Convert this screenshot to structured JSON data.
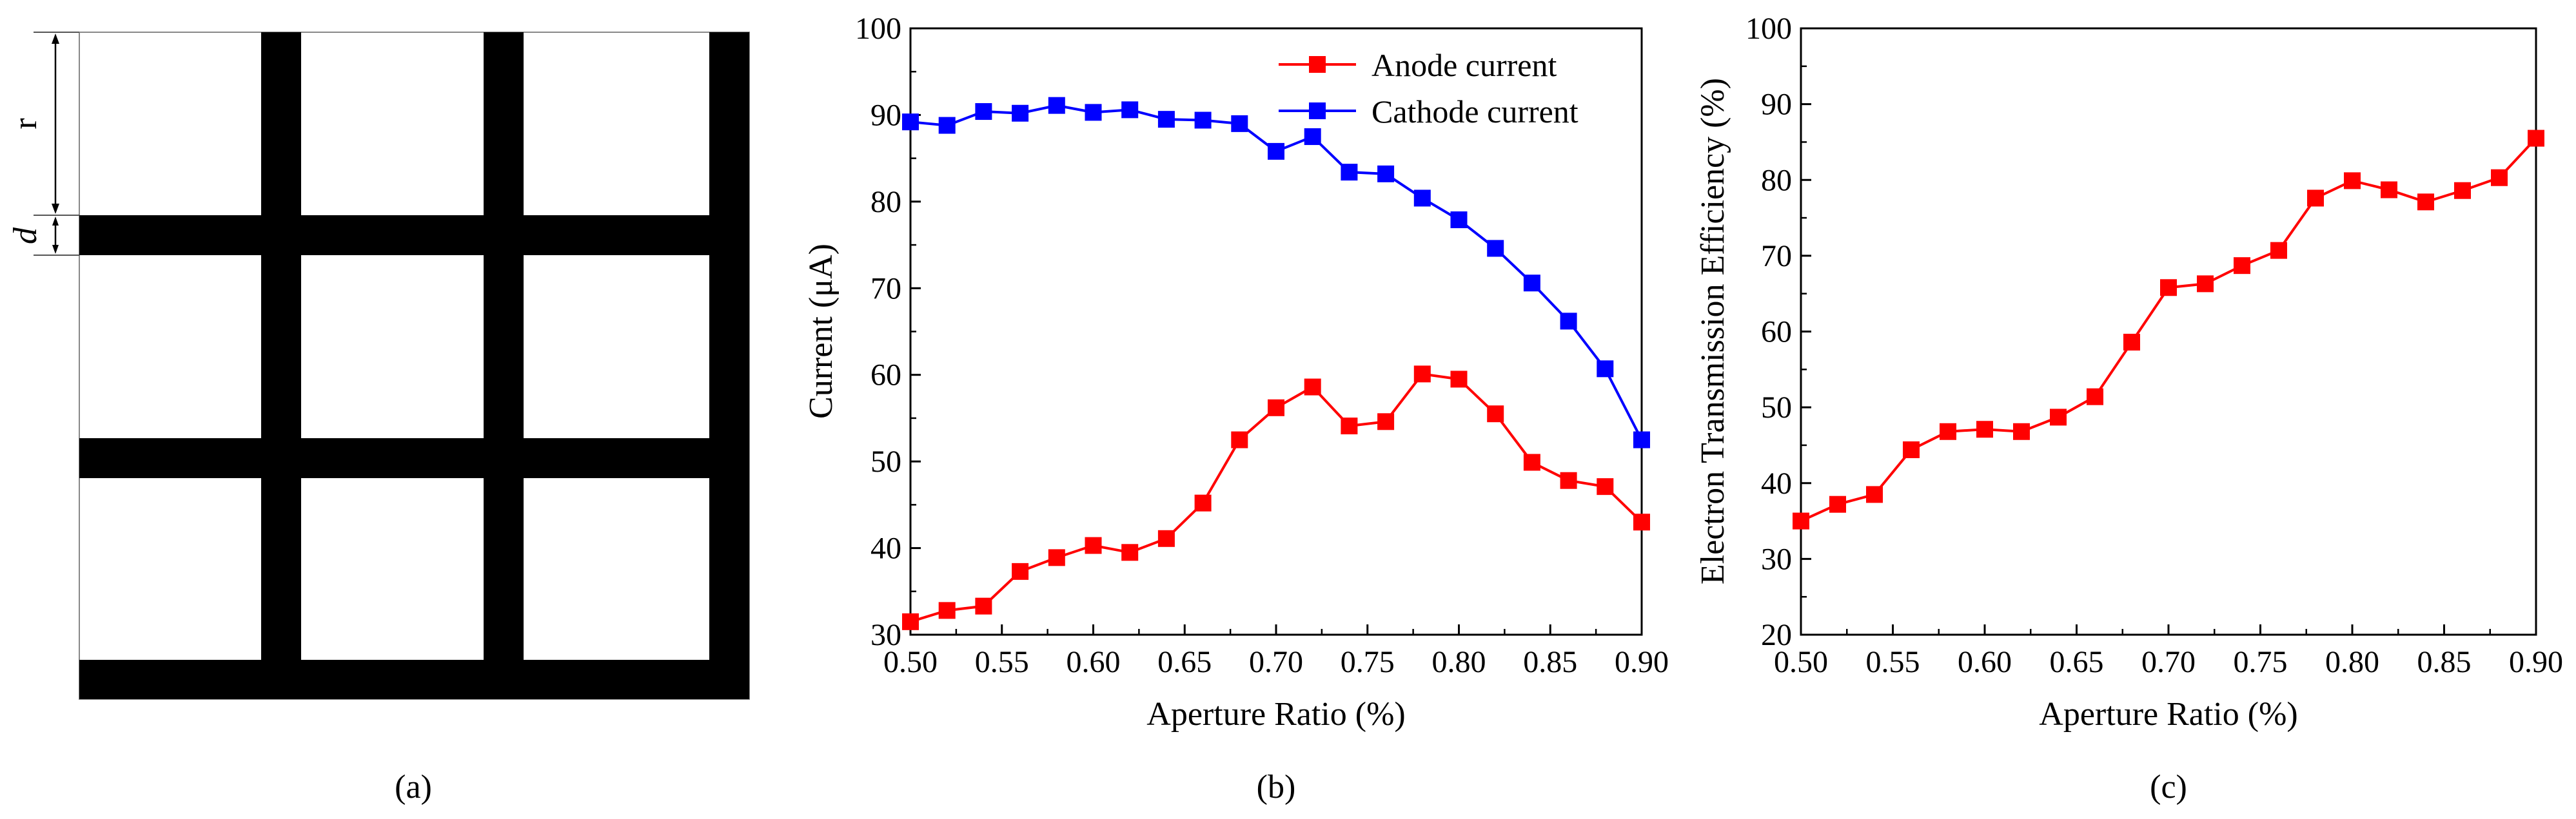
{
  "panels": {
    "a": {
      "caption": "(a)",
      "label_r": "r",
      "label_d": "d"
    }
  },
  "colors": {
    "anode": "#ff0000",
    "cathode": "#0000ff",
    "grid_bar": "#000000"
  },
  "chart_data": [
    {
      "panel": "b",
      "caption": "(b)",
      "type": "line",
      "title": "",
      "xlabel": "Aperture Ratio (%)",
      "ylabel": "Current (μA)",
      "xlim": [
        0.5,
        0.9
      ],
      "ylim": [
        30,
        100
      ],
      "xticks": [
        "0.50",
        "0.55",
        "0.60",
        "0.65",
        "0.70",
        "0.75",
        "0.80",
        "0.85",
        "0.90"
      ],
      "yticks": [
        "30",
        "40",
        "50",
        "60",
        "70",
        "80",
        "90",
        "100"
      ],
      "grid": false,
      "legend": "top-right",
      "x": [
        0.5,
        0.52,
        0.54,
        0.56,
        0.58,
        0.6,
        0.62,
        0.64,
        0.66,
        0.68,
        0.7,
        0.72,
        0.74,
        0.76,
        0.78,
        0.8,
        0.82,
        0.84,
        0.86,
        0.88,
        0.9
      ],
      "series": [
        {
          "name": "Anode current",
          "color": "#ff0000",
          "values": [
            31.5,
            32.8,
            33.3,
            37.3,
            38.9,
            40.3,
            39.5,
            41.1,
            45.2,
            52.5,
            56.2,
            58.6,
            54.1,
            54.6,
            60.1,
            59.5,
            55.5,
            49.9,
            47.8,
            47.1,
            43.0
          ]
        },
        {
          "name": "Cathode current",
          "color": "#0000ff",
          "values": [
            89.2,
            88.8,
            90.4,
            90.2,
            91.1,
            90.3,
            90.6,
            89.5,
            89.4,
            89.0,
            85.8,
            87.5,
            83.4,
            83.2,
            80.4,
            77.9,
            74.6,
            70.6,
            66.2,
            60.7,
            52.5
          ]
        }
      ]
    },
    {
      "panel": "c",
      "caption": "(c)",
      "type": "line",
      "title": "",
      "xlabel": "Aperture Ratio (%)",
      "ylabel": "Electron Transmission Efficiency (%)",
      "xlim": [
        0.5,
        0.9
      ],
      "ylim": [
        20,
        100
      ],
      "xticks": [
        "0.50",
        "0.55",
        "0.60",
        "0.65",
        "0.70",
        "0.75",
        "0.80",
        "0.85",
        "0.90"
      ],
      "yticks": [
        "20",
        "30",
        "40",
        "50",
        "60",
        "70",
        "80",
        "90",
        "100"
      ],
      "grid": false,
      "legend": "none",
      "x": [
        0.5,
        0.52,
        0.54,
        0.56,
        0.58,
        0.6,
        0.62,
        0.64,
        0.66,
        0.68,
        0.7,
        0.72,
        0.74,
        0.76,
        0.78,
        0.8,
        0.82,
        0.84,
        0.86,
        0.88,
        0.9
      ],
      "series": [
        {
          "name": "Electron Transmission Efficiency",
          "color": "#ff0000",
          "values": [
            35.0,
            37.2,
            38.5,
            44.4,
            46.8,
            47.1,
            46.8,
            48.7,
            51.4,
            58.6,
            65.8,
            66.3,
            68.7,
            70.7,
            77.6,
            79.9,
            78.7,
            77.1,
            78.6,
            80.3,
            85.5
          ]
        }
      ]
    }
  ]
}
